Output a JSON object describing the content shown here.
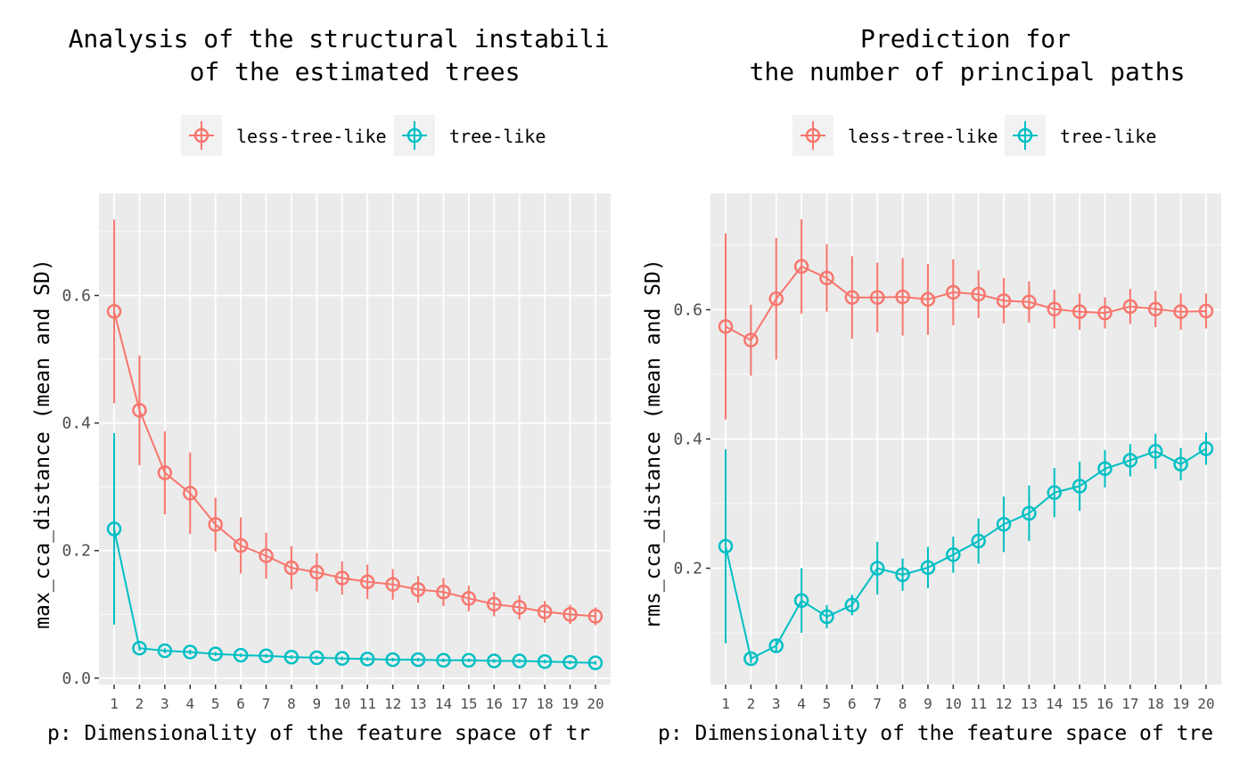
{
  "colors": {
    "less_tree_like": "#F8766D",
    "tree_like": "#00BFC4",
    "panel": "#EBEBEB",
    "grid": "#FFFFFF"
  },
  "chart_data": [
    {
      "type": "line",
      "title_line1": "Analysis of the structural instabili",
      "title_line2": "of the estimated trees",
      "xlabel": "p: Dimensionality of the feature space of tr",
      "ylabel": "max_cca_distance (mean and SD)",
      "x": [
        1,
        2,
        3,
        4,
        5,
        6,
        7,
        8,
        9,
        10,
        11,
        12,
        13,
        14,
        15,
        16,
        17,
        18,
        19,
        20
      ],
      "ylim": [
        -0.01,
        0.76
      ],
      "yticks": [
        0.0,
        0.2,
        0.4,
        0.6
      ],
      "ytick_labels": [
        "0.0",
        "0.2",
        "0.4",
        "0.6"
      ],
      "legend": {
        "position": "top",
        "labels": [
          "less-tree-like",
          "tree-like"
        ]
      },
      "series": [
        {
          "name": "less-tree-like",
          "mean": [
            0.575,
            0.42,
            0.322,
            0.29,
            0.241,
            0.208,
            0.192,
            0.173,
            0.166,
            0.157,
            0.151,
            0.147,
            0.139,
            0.135,
            0.125,
            0.116,
            0.111,
            0.104,
            0.1,
            0.097
          ],
          "sd": [
            0.144,
            0.086,
            0.065,
            0.064,
            0.042,
            0.044,
            0.036,
            0.034,
            0.03,
            0.026,
            0.027,
            0.024,
            0.021,
            0.022,
            0.02,
            0.019,
            0.019,
            0.017,
            0.015,
            0.014
          ]
        },
        {
          "name": "tree-like",
          "mean": [
            0.234,
            0.047,
            0.043,
            0.041,
            0.038,
            0.036,
            0.035,
            0.033,
            0.032,
            0.031,
            0.03,
            0.029,
            0.029,
            0.028,
            0.028,
            0.027,
            0.027,
            0.026,
            0.025,
            0.024
          ],
          "sd": [
            0.15,
            0.004,
            0.004,
            0.004,
            0.003,
            0.003,
            0.003,
            0.003,
            0.003,
            0.003,
            0.003,
            0.003,
            0.003,
            0.003,
            0.003,
            0.003,
            0.003,
            0.003,
            0.003,
            0.003
          ]
        }
      ]
    },
    {
      "type": "line",
      "title_line1": "Prediction for",
      "title_line2": "the number of principal paths",
      "xlabel": "p: Dimensionality of the feature space of tre",
      "ylabel": "rms_cca_distance (mean and SD)",
      "x": [
        1,
        2,
        3,
        4,
        5,
        6,
        7,
        8,
        9,
        10,
        11,
        12,
        13,
        14,
        15,
        16,
        17,
        18,
        19,
        20
      ],
      "ylim": [
        0.02,
        0.78
      ],
      "yticks": [
        0.2,
        0.4,
        0.6
      ],
      "ytick_labels": [
        "0.2",
        "0.4",
        "0.6"
      ],
      "legend": {
        "position": "top",
        "labels": [
          "less-tree-like",
          "tree-like"
        ]
      },
      "series": [
        {
          "name": "less-tree-like",
          "mean": [
            0.574,
            0.553,
            0.617,
            0.667,
            0.649,
            0.619,
            0.619,
            0.62,
            0.616,
            0.627,
            0.624,
            0.614,
            0.612,
            0.601,
            0.597,
            0.595,
            0.605,
            0.601,
            0.597,
            0.598
          ],
          "sd": [
            0.144,
            0.055,
            0.094,
            0.073,
            0.052,
            0.064,
            0.054,
            0.06,
            0.055,
            0.051,
            0.037,
            0.035,
            0.032,
            0.03,
            0.028,
            0.024,
            0.027,
            0.028,
            0.028,
            0.027
          ]
        },
        {
          "name": "tree-like",
          "mean": [
            0.234,
            0.06,
            0.08,
            0.15,
            0.125,
            0.143,
            0.2,
            0.19,
            0.201,
            0.221,
            0.242,
            0.268,
            0.285,
            0.317,
            0.327,
            0.354,
            0.367,
            0.381,
            0.361,
            0.385
          ],
          "sd": [
            0.15,
            0.007,
            0.01,
            0.05,
            0.018,
            0.016,
            0.041,
            0.025,
            0.032,
            0.028,
            0.035,
            0.043,
            0.043,
            0.038,
            0.038,
            0.029,
            0.025,
            0.027,
            0.025,
            0.025
          ]
        }
      ]
    }
  ]
}
